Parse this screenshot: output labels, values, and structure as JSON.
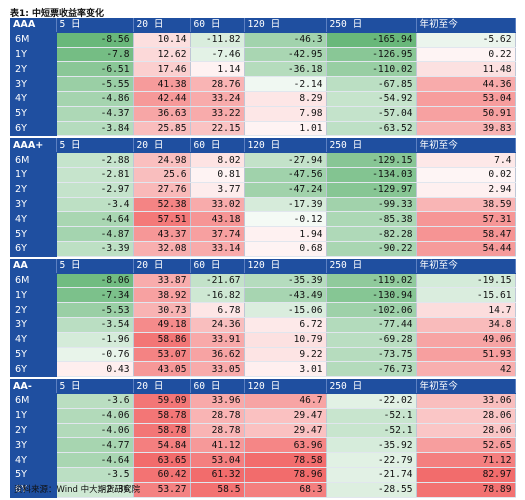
{
  "title": "表1:  中短票收益率变化",
  "columns": [
    "5 日",
    "20 日",
    "60 日",
    "120 日",
    "250 日",
    "年初至今"
  ],
  "source": "资料来源：Wind  中大期货研究院",
  "groups": [
    {
      "name": "AAA",
      "rows": [
        {
          "label": "6M",
          "values": [
            "-8.56",
            "10.14",
            "-11.82",
            "-46.3",
            "-165.94",
            "-5.62"
          ]
        },
        {
          "label": "1Y",
          "values": [
            "-7.8",
            "12.62",
            "-7.46",
            "-42.95",
            "-126.95",
            "0.22"
          ]
        },
        {
          "label": "2Y",
          "values": [
            "-6.51",
            "17.46",
            "1.14",
            "-36.18",
            "-110.02",
            "11.48"
          ]
        },
        {
          "label": "3Y",
          "values": [
            "-5.55",
            "41.38",
            "28.76",
            "-2.14",
            "-67.85",
            "44.36"
          ]
        },
        {
          "label": "4Y",
          "values": [
            "-4.86",
            "42.44",
            "33.24",
            "8.29",
            "-54.92",
            "53.04"
          ]
        },
        {
          "label": "5Y",
          "values": [
            "-4.37",
            "36.63",
            "33.22",
            "7.98",
            "-57.04",
            "50.91"
          ]
        },
        {
          "label": "6Y",
          "values": [
            "-3.84",
            "25.85",
            "22.15",
            "1.01",
            "-63.52",
            "39.83"
          ]
        }
      ]
    },
    {
      "name": "AAA+",
      "rows": [
        {
          "label": "6M",
          "values": [
            "-2.88",
            "24.98",
            "8.02",
            "-27.94",
            "-129.15",
            "7.4"
          ]
        },
        {
          "label": "1Y",
          "values": [
            "-2.81",
            "25.6",
            "0.81",
            "-47.56",
            "-134.03",
            "0.02"
          ]
        },
        {
          "label": "2Y",
          "values": [
            "-2.97",
            "27.76",
            "3.77",
            "-47.24",
            "-129.97",
            "2.94"
          ]
        },
        {
          "label": "3Y",
          "values": [
            "-3.4",
            "52.38",
            "33.02",
            "-17.39",
            "-99.33",
            "38.59"
          ]
        },
        {
          "label": "4Y",
          "values": [
            "-4.64",
            "57.51",
            "43.18",
            "-0.12",
            "-85.38",
            "57.31"
          ]
        },
        {
          "label": "5Y",
          "values": [
            "-4.87",
            "43.37",
            "37.74",
            "1.94",
            "-82.28",
            "58.47"
          ]
        },
        {
          "label": "6Y",
          "values": [
            "-3.39",
            "32.08",
            "33.14",
            "0.68",
            "-90.22",
            "54.44"
          ]
        }
      ]
    },
    {
      "name": "AA",
      "rows": [
        {
          "label": "6M",
          "values": [
            "-8.06",
            "33.87",
            "-21.67",
            "-35.39",
            "-119.02",
            "-19.15"
          ]
        },
        {
          "label": "1Y",
          "values": [
            "-7.34",
            "38.92",
            "-16.82",
            "-43.49",
            "-130.94",
            "-15.61"
          ]
        },
        {
          "label": "2Y",
          "values": [
            "-5.53",
            "30.73",
            "6.78",
            "-15.06",
            "-102.06",
            "14.7"
          ]
        },
        {
          "label": "3Y",
          "values": [
            "-3.54",
            "49.18",
            "24.36",
            "6.72",
            "-77.44",
            "34.8"
          ]
        },
        {
          "label": "4Y",
          "values": [
            "-1.96",
            "58.86",
            "33.91",
            "10.79",
            "-69.28",
            "49.06"
          ]
        },
        {
          "label": "5Y",
          "values": [
            "-0.76",
            "53.07",
            "36.62",
            "9.22",
            "-73.75",
            "51.93"
          ]
        },
        {
          "label": "6Y",
          "values": [
            "0.43",
            "43.05",
            "33.05",
            "3.01",
            "-76.73",
            "42"
          ]
        }
      ]
    },
    {
      "name": "AA-",
      "rows": [
        {
          "label": "6M",
          "values": [
            "-3.6",
            "59.09",
            "33.96",
            "46.7",
            "-22.02",
            "33.06"
          ]
        },
        {
          "label": "1Y",
          "values": [
            "-4.06",
            "58.78",
            "28.78",
            "29.47",
            "-52.1",
            "28.06"
          ]
        },
        {
          "label": "2Y",
          "values": [
            "-4.06",
            "58.78",
            "28.78",
            "29.47",
            "-52.1",
            "28.06"
          ]
        },
        {
          "label": "3Y",
          "values": [
            "-4.77",
            "54.84",
            "41.12",
            "63.96",
            "-35.92",
            "52.65"
          ]
        },
        {
          "label": "4Y",
          "values": [
            "-4.64",
            "63.65",
            "53.04",
            "78.58",
            "-22.79",
            "71.12"
          ]
        },
        {
          "label": "5Y",
          "values": [
            "-3.5",
            "60.42",
            "61.32",
            "78.96",
            "-21.74",
            "82.97"
          ]
        },
        {
          "label": "6Y",
          "values": [
            "-2.36",
            "53.27",
            "58.5",
            "68.3",
            "-28.55",
            "78.89"
          ]
        }
      ]
    }
  ]
}
